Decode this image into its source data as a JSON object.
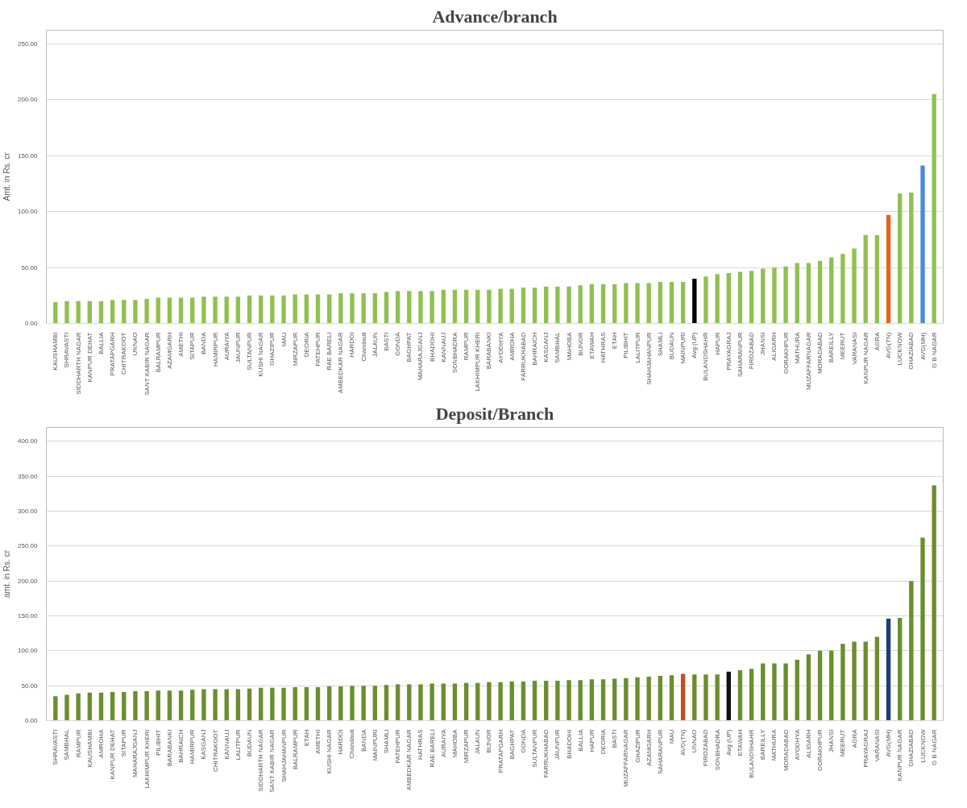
{
  "chart_data": [
    {
      "type": "bar",
      "title": "Advance/branch",
      "ylabel": "Amt. in Rs. cr",
      "grid": "y",
      "categories": [
        "KAUSHAMBI",
        "SHRAVASTI",
        "SIDDHARTH NAGAR",
        "KANPUR DEHAT",
        "BALLIA",
        "PRATAPGARH",
        "CHITRAKOOT",
        "UNNAO",
        "SANT KABIR NAGAR",
        "BALRAMPUR",
        "AZAMGARH",
        "AMETHI",
        "SITAPUR",
        "BANDA",
        "HAMIRPUR",
        "AURAIYA",
        "JAUNPUR",
        "SULTANPUR",
        "KUSHI NAGAR",
        "GHAZIPUR",
        "MAU",
        "MIRZAPUR",
        "DEORIA",
        "FATEHPUR",
        "RAE BARELI",
        "AMBEDKAR NAGAR",
        "HARDOI",
        "Chandauli",
        "JALAUN",
        "BASTI",
        "GONDA",
        "BAGHPAT",
        "MAHARAJGANJ",
        "BHADOHI",
        "KANNAUJ",
        "SONBHADRA",
        "RAMPUR",
        "LAKHIMPUR KHERI",
        "BARABANKI",
        "AYODHYA",
        "AMROHA",
        "FARRUKHABAD",
        "BAHRAICH",
        "KASGANJ",
        "SAMBHAL",
        "MAHOBA",
        "BIJNOR",
        "ETAWAH",
        "HATHRAS",
        "ETAH",
        "PILIBHIT",
        "LALITPUR",
        "SHAHJAHANPUR",
        "SHAMLI",
        "BUDAUN",
        "MAINPURI",
        "Avg (UP)",
        "BULANDSHAHR",
        "HAPUR",
        "PRAYAGRAJ",
        "SAHARANPUR",
        "FIROZABAD",
        "JHANSI",
        "ALIGARH",
        "GORAKHPUR",
        "MATHURA",
        "MUZAFFARNAGAR",
        "MORADABAD",
        "BAREILLY",
        "MEERUT",
        "VARANASI",
        "KANPUR NAGAR",
        "AGRA",
        "AVG(TN)",
        "LUCKNOW",
        "GHAZIABAD",
        "AVG(MH)",
        "G B NAGAR"
      ],
      "values": [
        19,
        20,
        20,
        20,
        20,
        21,
        21,
        21,
        22,
        23,
        23,
        23,
        23,
        24,
        24,
        24,
        24,
        25,
        25,
        25,
        25,
        26,
        26,
        26,
        26,
        27,
        27,
        27,
        27,
        28,
        29,
        29,
        29,
        29,
        30,
        30,
        30,
        30,
        30,
        31,
        31,
        32,
        32,
        33,
        33,
        33,
        34,
        35,
        35,
        35,
        36,
        36,
        36,
        37,
        37,
        37,
        40,
        42,
        44,
        45,
        46,
        47,
        49,
        50,
        51,
        54,
        54,
        56,
        59,
        62,
        67,
        79,
        79,
        97,
        116,
        117,
        141,
        205
      ],
      "colors": [
        "#92c050",
        "#92c050",
        "#92c050",
        "#92c050",
        "#92c050",
        "#92c050",
        "#92c050",
        "#92c050",
        "#92c050",
        "#92c050",
        "#92c050",
        "#92c050",
        "#92c050",
        "#92c050",
        "#92c050",
        "#92c050",
        "#92c050",
        "#92c050",
        "#92c050",
        "#92c050",
        "#92c050",
        "#92c050",
        "#92c050",
        "#92c050",
        "#92c050",
        "#92c050",
        "#92c050",
        "#92c050",
        "#92c050",
        "#92c050",
        "#92c050",
        "#92c050",
        "#92c050",
        "#92c050",
        "#92c050",
        "#92c050",
        "#92c050",
        "#92c050",
        "#92c050",
        "#92c050",
        "#92c050",
        "#92c050",
        "#92c050",
        "#92c050",
        "#92c050",
        "#92c050",
        "#92c050",
        "#92c050",
        "#92c050",
        "#92c050",
        "#92c050",
        "#92c050",
        "#92c050",
        "#92c050",
        "#92c050",
        "#92c050",
        "#000000",
        "#92c050",
        "#92c050",
        "#92c050",
        "#92c050",
        "#92c050",
        "#92c050",
        "#92c050",
        "#92c050",
        "#92c050",
        "#92c050",
        "#92c050",
        "#92c050",
        "#92c050",
        "#92c050",
        "#92c050",
        "#92c050",
        "#e8641b",
        "#92c050",
        "#92c050",
        "#4a8ad4",
        "#92c050"
      ],
      "ylim": [
        0,
        262
      ],
      "yticks": [
        {
          "value": 0,
          "label": "0.00"
        },
        {
          "value": 50,
          "label": "50.00"
        },
        {
          "value": 100,
          "label": "100.00"
        },
        {
          "value": 150,
          "label": "150.00"
        },
        {
          "value": 200,
          "label": "200.00"
        },
        {
          "value": 250,
          "label": "250.00"
        }
      ]
    },
    {
      "type": "bar",
      "title": "Deposit/Branch",
      "ylabel": "amt. in Rs. cr",
      "grid": "y",
      "categories": [
        "SHRAVASTI",
        "SAMBHAL",
        "RAMPUR",
        "KAUSHAMBI",
        "AMROHA",
        "KANPUR DEHAT",
        "SITAPUR",
        "MAHARAJGANJ",
        "LAKHIMPUR KHERI",
        "PILIBHIT",
        "BARABANKI",
        "BAHRAICH",
        "HAMIRPUR",
        "KASGANJ",
        "CHITRAKOOT",
        "KANNAUJ",
        "LALITPUR",
        "BUDAUN",
        "SIDDHARTH NAGAR",
        "SANT KABIR NAGAR",
        "SHAHJAHANPUR",
        "BALRAMPUR",
        "ETAH",
        "AMETHI",
        "KUSHI NAGAR",
        "HARDOI",
        "Chandauli",
        "BANDA",
        "MAINPURI",
        "SHAMLI",
        "FATEHPUR",
        "AMBEDKAR NAGAR",
        "HATHRAS",
        "RAE BARELI",
        "AURAIYA",
        "MAHOBA",
        "MIRZAPUR",
        "JALAUN",
        "BIJNOR",
        "PRATAPGARH",
        "BAGHPAT",
        "GONDA",
        "SULTANPUR",
        "FARRUKHABAD",
        "JAUNPUR",
        "BHADOHI",
        "BALLIA",
        "HAPUR",
        "DEORIA",
        "BASTI",
        "MUZAFFARNAGAR",
        "GHAZIPUR",
        "AZAMGARH",
        "SAHARANPUR",
        "MAU",
        "AVG(TN)",
        "UNNAO",
        "FIROZABAD",
        "SONBHADRA",
        "Avg (UP)",
        "ETAWAH",
        "BULANDSHAHR",
        "BAREILLY",
        "MATHURA",
        "MORADABAD",
        "AYODHYA",
        "ALIGARH",
        "GORAKHPUR",
        "JHANSI",
        "MEERUT",
        "AGRA",
        "PRAYAGRAJ",
        "VARANASI",
        "AVG(MH)",
        "KANPUR NAGAR",
        "GHAZIABAD",
        "LUCKNOW",
        "G B NAGAR"
      ],
      "values": [
        35,
        37,
        39,
        40,
        40,
        41,
        41,
        42,
        42,
        43,
        43,
        43,
        44,
        45,
        45,
        45,
        45,
        46,
        47,
        47,
        47,
        48,
        48,
        48,
        49,
        49,
        50,
        50,
        50,
        51,
        52,
        52,
        52,
        53,
        53,
        53,
        54,
        54,
        55,
        55,
        56,
        56,
        57,
        57,
        57,
        58,
        58,
        59,
        59,
        60,
        61,
        62,
        63,
        64,
        65,
        67,
        66,
        66,
        66,
        70,
        72,
        74,
        82,
        82,
        82,
        87,
        95,
        100,
        100,
        110,
        113,
        113,
        120,
        146,
        147,
        200,
        262,
        337
      ],
      "colors": [
        "#6b8e2e",
        "#6b8e2e",
        "#6b8e2e",
        "#6b8e2e",
        "#6b8e2e",
        "#6b8e2e",
        "#6b8e2e",
        "#6b8e2e",
        "#6b8e2e",
        "#6b8e2e",
        "#6b8e2e",
        "#6b8e2e",
        "#6b8e2e",
        "#6b8e2e",
        "#6b8e2e",
        "#6b8e2e",
        "#6b8e2e",
        "#6b8e2e",
        "#6b8e2e",
        "#6b8e2e",
        "#6b8e2e",
        "#6b8e2e",
        "#6b8e2e",
        "#6b8e2e",
        "#6b8e2e",
        "#6b8e2e",
        "#6b8e2e",
        "#6b8e2e",
        "#6b8e2e",
        "#6b8e2e",
        "#6b8e2e",
        "#6b8e2e",
        "#6b8e2e",
        "#6b8e2e",
        "#6b8e2e",
        "#6b8e2e",
        "#6b8e2e",
        "#6b8e2e",
        "#6b8e2e",
        "#6b8e2e",
        "#6b8e2e",
        "#6b8e2e",
        "#6b8e2e",
        "#6b8e2e",
        "#6b8e2e",
        "#6b8e2e",
        "#6b8e2e",
        "#6b8e2e",
        "#6b8e2e",
        "#6b8e2e",
        "#6b8e2e",
        "#6b8e2e",
        "#6b8e2e",
        "#6b8e2e",
        "#6b8e2e",
        "#c0501f",
        "#6b8e2e",
        "#6b8e2e",
        "#6b8e2e",
        "#111111",
        "#6b8e2e",
        "#6b8e2e",
        "#6b8e2e",
        "#6b8e2e",
        "#6b8e2e",
        "#6b8e2e",
        "#6b8e2e",
        "#6b8e2e",
        "#6b8e2e",
        "#6b8e2e",
        "#6b8e2e",
        "#6b8e2e",
        "#6b8e2e",
        "#1f3d7a",
        "#6b8e2e",
        "#6b8e2e",
        "#6b8e2e",
        "#6b8e2e"
      ],
      "ylim": [
        0,
        420
      ],
      "yticks": [
        {
          "value": 0,
          "label": "0.00"
        },
        {
          "value": 50,
          "label": "50.00"
        },
        {
          "value": 100,
          "label": "100.00"
        },
        {
          "value": 150,
          "label": "150.00"
        },
        {
          "value": 200,
          "label": "200.00"
        },
        {
          "value": 250,
          "label": "250.00"
        },
        {
          "value": 300,
          "label": "300.00"
        },
        {
          "value": 350,
          "label": "350.00"
        },
        {
          "value": 400,
          "label": "400.00"
        }
      ]
    }
  ]
}
